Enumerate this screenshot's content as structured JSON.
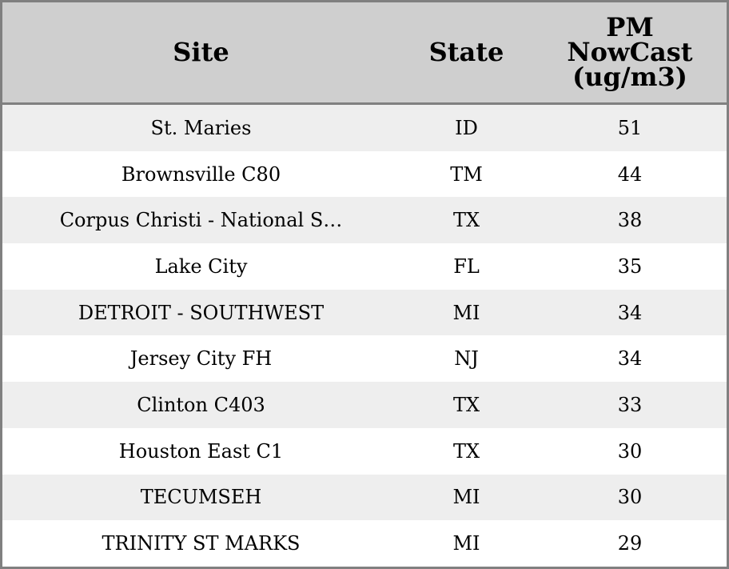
{
  "table": {
    "headers": [
      "Site",
      "State",
      "PM NowCast (ug/m3)"
    ],
    "header_lines": [
      "PM",
      "NowCast",
      "(ug/m3)"
    ],
    "rows": [
      {
        "site": "St. Maries",
        "state": "ID",
        "pm": "51"
      },
      {
        "site": "Brownsville C80",
        "state": "TM",
        "pm": "44"
      },
      {
        "site": "Corpus Christi - National S…",
        "state": "TX",
        "pm": "38"
      },
      {
        "site": "Lake City",
        "state": "FL",
        "pm": "35"
      },
      {
        "site": "DETROIT - SOUTHWEST",
        "state": "MI",
        "pm": "34"
      },
      {
        "site": "Jersey City FH",
        "state": "NJ",
        "pm": "34"
      },
      {
        "site": "Clinton C403",
        "state": "TX",
        "pm": "33"
      },
      {
        "site": "Houston East C1",
        "state": "TX",
        "pm": "30"
      },
      {
        "site": "TECUMSEH",
        "state": "MI",
        "pm": "30"
      },
      {
        "site": "TRINITY ST MARKS",
        "state": "MI",
        "pm": "29"
      }
    ]
  },
  "colors": {
    "header_bg": "#cfcfcf",
    "border": "#808080",
    "stripe": "#eeeeee"
  }
}
